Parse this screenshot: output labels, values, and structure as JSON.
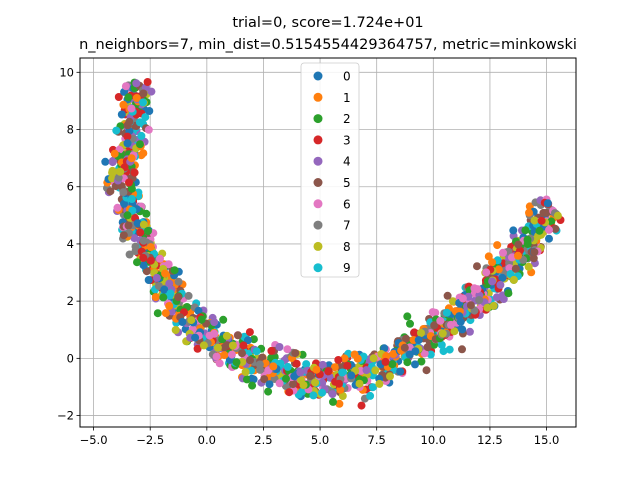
{
  "chart_data": {
    "type": "scatter",
    "title_line1": "trial=0, score=1.724e+01",
    "title_line2": "n_neighbors=7, min_dist=0.5154554429364757, metric=minkowski",
    "xlabel": "",
    "ylabel": "",
    "xlim": [
      -5.6,
      16.3
    ],
    "ylim": [
      -2.4,
      10.5
    ],
    "xticks": [
      -5.0,
      -2.5,
      0.0,
      2.5,
      5.0,
      7.5,
      10.0,
      12.5,
      15.0
    ],
    "xtick_labels": [
      "−5.0",
      "−2.5",
      "0.0",
      "2.5",
      "5.0",
      "7.5",
      "10.0",
      "12.5",
      "15.0"
    ],
    "yticks": [
      -2,
      0,
      2,
      4,
      6,
      8,
      10
    ],
    "ytick_labels": [
      "−2",
      "0",
      "2",
      "4",
      "6",
      "8",
      "10"
    ],
    "grid": true,
    "legend_position": "upper-center",
    "series": [
      {
        "name": "0",
        "color": "#1f77b4"
      },
      {
        "name": "1",
        "color": "#ff7f0e"
      },
      {
        "name": "2",
        "color": "#2ca02c"
      },
      {
        "name": "3",
        "color": "#d62728"
      },
      {
        "name": "4",
        "color": "#9467bd"
      },
      {
        "name": "5",
        "color": "#8c564b"
      },
      {
        "name": "6",
        "color": "#e377c2"
      },
      {
        "name": "7",
        "color": "#7f7f7f"
      },
      {
        "name": "8",
        "color": "#bcbd22"
      },
      {
        "name": "9",
        "color": "#17becf"
      }
    ],
    "curve_shape": {
      "center_line": [
        [
          -3.0,
          9.6
        ],
        [
          -3.3,
          8.0
        ],
        [
          -3.8,
          6.5
        ],
        [
          -3.4,
          5.2
        ],
        [
          -2.8,
          4.0
        ],
        [
          -2.0,
          2.7
        ],
        [
          -1.0,
          1.6
        ],
        [
          0.0,
          0.8
        ],
        [
          1.5,
          0.1
        ],
        [
          3.0,
          -0.4
        ],
        [
          4.5,
          -0.7
        ],
        [
          5.5,
          -0.7
        ],
        [
          6.5,
          -0.6
        ],
        [
          8.0,
          -0.1
        ],
        [
          9.5,
          0.6
        ],
        [
          11.0,
          1.4
        ],
        [
          12.5,
          2.5
        ],
        [
          13.5,
          3.4
        ],
        [
          14.5,
          4.3
        ],
        [
          15.2,
          5.4
        ]
      ],
      "spread": 0.7,
      "point_count": 1400
    }
  }
}
